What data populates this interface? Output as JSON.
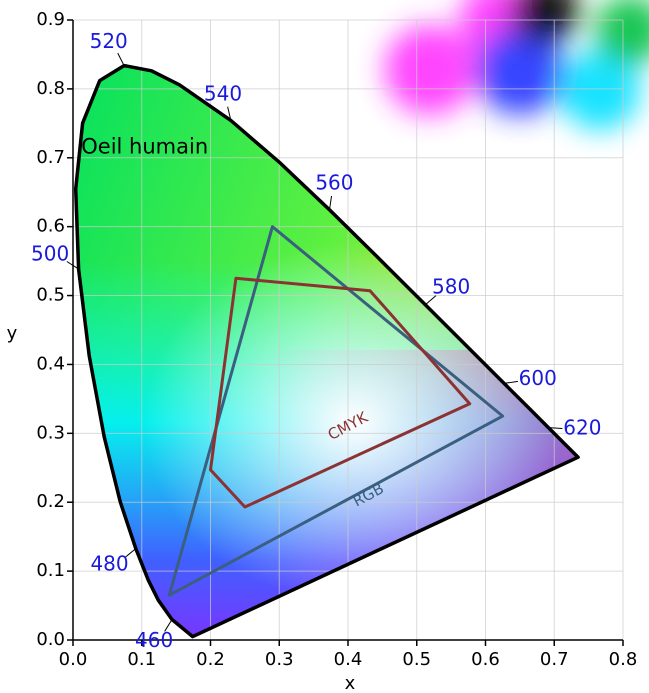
{
  "chart_data": {
    "type": "chromaticity",
    "xlabel": "x",
    "ylabel": "y",
    "xlim": [
      0,
      0.8
    ],
    "ylim": [
      0,
      0.9
    ],
    "xticks": [
      {
        "value": 0,
        "label": "0.0"
      },
      {
        "value": 0.1,
        "label": "0.1"
      },
      {
        "value": 0.2,
        "label": "0.2"
      },
      {
        "value": 0.3,
        "label": "0.3"
      },
      {
        "value": 0.4,
        "label": "0.4"
      },
      {
        "value": 0.5,
        "label": "0.5"
      },
      {
        "value": 0.6,
        "label": "0.6"
      },
      {
        "value": 0.7,
        "label": "0.7"
      },
      {
        "value": 0.8,
        "label": "0.8"
      }
    ],
    "yticks": [
      {
        "value": 0,
        "label": "0.0"
      },
      {
        "value": 0.1,
        "label": "0.1"
      },
      {
        "value": 0.2,
        "label": "0.2"
      },
      {
        "value": 0.3,
        "label": "0.3"
      },
      {
        "value": 0.4,
        "label": "0.4"
      },
      {
        "value": 0.5,
        "label": "0.5"
      },
      {
        "value": 0.6,
        "label": "0.6"
      },
      {
        "value": 0.7,
        "label": "0.7"
      },
      {
        "value": 0.8,
        "label": "0.8"
      },
      {
        "value": 0.9,
        "label": "0.9"
      }
    ],
    "grid": true,
    "locus": {
      "name": "Oeil humain",
      "color": "#000000",
      "x": [
        0.1741,
        0.144,
        0.1241,
        0.1096,
        0.0913,
        0.0687,
        0.0454,
        0.0235,
        0.0082,
        0.0039,
        0.0139,
        0.0389,
        0.0743,
        0.1142,
        0.1547,
        0.2296,
        0.3016,
        0.3731,
        0.4441,
        0.5125,
        0.5752,
        0.627,
        0.6658,
        0.6915,
        0.719,
        0.7347
      ],
      "y": [
        0.005,
        0.0297,
        0.0578,
        0.0868,
        0.1327,
        0.2007,
        0.295,
        0.4127,
        0.5384,
        0.6548,
        0.7502,
        0.812,
        0.8338,
        0.8262,
        0.8059,
        0.7543,
        0.6923,
        0.6245,
        0.5547,
        0.4866,
        0.4242,
        0.3725,
        0.334,
        0.3083,
        0.2809,
        0.2653
      ]
    },
    "series": [
      {
        "name": "RGB",
        "color": "#3a5f7f",
        "x": [
          0.625,
          0.29,
          0.14
        ],
        "y": [
          0.325,
          0.6,
          0.065
        ]
      },
      {
        "name": "CMYK",
        "color": "#8b3333",
        "x": [
          0.237,
          0.432,
          0.577,
          0.25,
          0.2
        ],
        "y": [
          0.525,
          0.507,
          0.343,
          0.193,
          0.247
        ]
      }
    ],
    "wavelengths": [
      {
        "label": 460,
        "x": 0.144,
        "y": 0.0297
      },
      {
        "label": 480,
        "x": 0.0913,
        "y": 0.1327
      },
      {
        "label": 500,
        "x": 0.0082,
        "y": 0.5384
      },
      {
        "label": 520,
        "x": 0.0743,
        "y": 0.8338
      },
      {
        "label": 540,
        "x": 0.2296,
        "y": 0.7543
      },
      {
        "label": 560,
        "x": 0.3731,
        "y": 0.6245
      },
      {
        "label": 580,
        "x": 0.5125,
        "y": 0.4866
      },
      {
        "label": 600,
        "x": 0.627,
        "y": 0.3725
      },
      {
        "label": 620,
        "x": 0.6915,
        "y": 0.3083
      }
    ]
  }
}
